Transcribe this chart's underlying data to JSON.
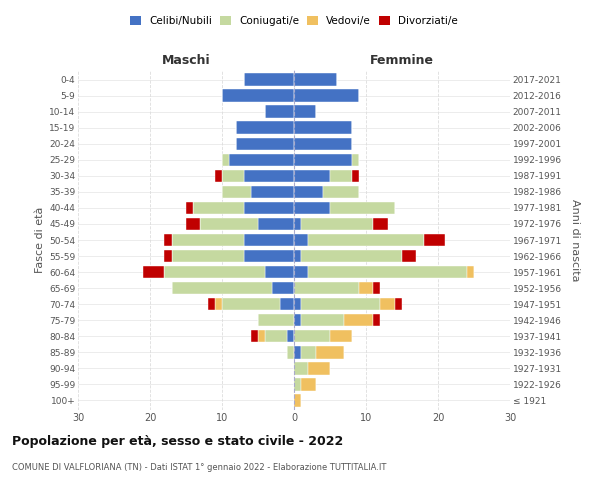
{
  "age_groups": [
    "100+",
    "95-99",
    "90-94",
    "85-89",
    "80-84",
    "75-79",
    "70-74",
    "65-69",
    "60-64",
    "55-59",
    "50-54",
    "45-49",
    "40-44",
    "35-39",
    "30-34",
    "25-29",
    "20-24",
    "15-19",
    "10-14",
    "5-9",
    "0-4"
  ],
  "birth_years": [
    "≤ 1921",
    "1922-1926",
    "1927-1931",
    "1932-1936",
    "1937-1941",
    "1942-1946",
    "1947-1951",
    "1952-1956",
    "1957-1961",
    "1962-1966",
    "1967-1971",
    "1972-1976",
    "1977-1981",
    "1982-1986",
    "1987-1991",
    "1992-1996",
    "1997-2001",
    "2002-2006",
    "2007-2011",
    "2012-2016",
    "2017-2021"
  ],
  "male": {
    "celibi": [
      0,
      0,
      0,
      0,
      1,
      0,
      2,
      3,
      4,
      7,
      7,
      5,
      7,
      6,
      7,
      9,
      8,
      8,
      4,
      10,
      7
    ],
    "coniugati": [
      0,
      0,
      0,
      1,
      3,
      5,
      8,
      14,
      14,
      10,
      10,
      8,
      7,
      4,
      3,
      1,
      0,
      0,
      0,
      0,
      0
    ],
    "vedovi": [
      0,
      0,
      0,
      0,
      1,
      0,
      1,
      0,
      0,
      0,
      0,
      0,
      0,
      0,
      0,
      0,
      0,
      0,
      0,
      0,
      0
    ],
    "divorziati": [
      0,
      0,
      0,
      0,
      1,
      0,
      1,
      0,
      3,
      1,
      1,
      2,
      1,
      0,
      1,
      0,
      0,
      0,
      0,
      0,
      0
    ]
  },
  "female": {
    "nubili": [
      0,
      0,
      0,
      1,
      0,
      1,
      1,
      0,
      2,
      1,
      2,
      1,
      5,
      4,
      5,
      8,
      8,
      8,
      3,
      9,
      6
    ],
    "coniugate": [
      0,
      1,
      2,
      2,
      5,
      6,
      11,
      9,
      22,
      14,
      16,
      10,
      9,
      5,
      3,
      1,
      0,
      0,
      0,
      0,
      0
    ],
    "vedove": [
      1,
      2,
      3,
      4,
      3,
      4,
      2,
      2,
      1,
      0,
      0,
      0,
      0,
      0,
      0,
      0,
      0,
      0,
      0,
      0,
      0
    ],
    "divorziate": [
      0,
      0,
      0,
      0,
      0,
      1,
      1,
      1,
      0,
      2,
      3,
      2,
      0,
      0,
      1,
      0,
      0,
      0,
      0,
      0,
      0
    ]
  },
  "colors": {
    "celibi": "#4472c4",
    "coniugati": "#c5d9a0",
    "vedovi": "#f0c060",
    "divorziati": "#c00000"
  },
  "title": "Popolazione per età, sesso e stato civile - 2022",
  "subtitle": "COMUNE DI VALFLORIANA (TN) - Dati ISTAT 1° gennaio 2022 - Elaborazione TUTTITALIA.IT",
  "xlabel_left": "Maschi",
  "xlabel_right": "Femmine",
  "ylabel_left": "Fasce di età",
  "ylabel_right": "Anni di nascita",
  "xlim": 30,
  "bg_color": "#ffffff",
  "grid_color": "#dddddd",
  "legend_labels": [
    "Celibi/Nubili",
    "Coniugati/e",
    "Vedovi/e",
    "Divorziati/e"
  ]
}
